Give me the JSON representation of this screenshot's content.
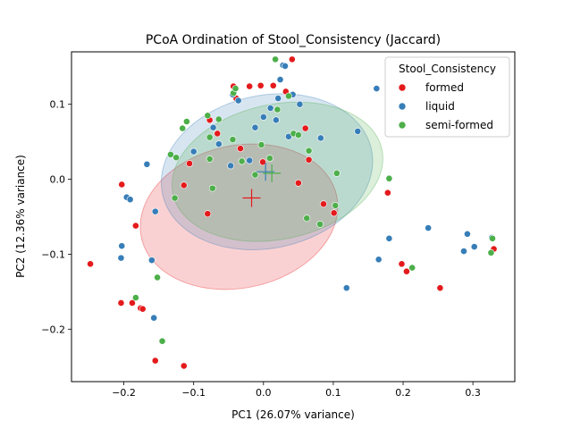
{
  "chart_data": {
    "type": "scatter",
    "title": "PCoA Ordination of Stool_Consistency (Jaccard)",
    "xlabel": "PC1 (26.07% variance)",
    "ylabel": "PC2 (12.36% variance)",
    "xlim": [
      -0.275,
      0.36
    ],
    "ylim": [
      -0.27,
      0.17
    ],
    "xticks": [
      -0.2,
      -0.1,
      0.0,
      0.1,
      0.2,
      0.3
    ],
    "xtick_labels": [
      "−0.2",
      "−0.1",
      "0.0",
      "0.1",
      "0.2",
      "0.3"
    ],
    "yticks": [
      -0.2,
      -0.1,
      0.0,
      0.1
    ],
    "ytick_labels": [
      "−0.2",
      "−0.1",
      "0.0",
      "0.1"
    ],
    "legend": {
      "title": "Stool_Consistency",
      "placement": "top-right"
    },
    "series": [
      {
        "name": "formed",
        "color": "#e41a1c",
        "centroid": [
          -0.017,
          -0.025
        ],
        "ellipse": {
          "center": [
            -0.035,
            -0.05
          ],
          "rx": 0.143,
          "ry": 0.095,
          "angle_deg": -12
        },
        "points": [
          [
            -0.248,
            -0.113
          ],
          [
            -0.203,
            -0.007
          ],
          [
            -0.204,
            -0.165
          ],
          [
            -0.188,
            -0.165
          ],
          [
            -0.183,
            -0.062
          ],
          [
            -0.176,
            -0.172
          ],
          [
            -0.173,
            -0.173
          ],
          [
            -0.155,
            -0.242
          ],
          [
            -0.114,
            -0.249
          ],
          [
            -0.106,
            0.021
          ],
          [
            -0.08,
            -0.046
          ],
          [
            -0.077,
            0.079
          ],
          [
            -0.066,
            0.061
          ],
          [
            -0.043,
            0.124
          ],
          [
            -0.039,
            0.108
          ],
          [
            -0.033,
            0.041
          ],
          [
            -0.02,
            0.124
          ],
          [
            -0.004,
            0.125
          ],
          [
            0.014,
            0.125
          ],
          [
            0.032,
            0.117
          ],
          [
            0.041,
            0.16
          ],
          [
            0.05,
            -0.005
          ],
          [
            0.06,
            0.068
          ],
          [
            0.065,
            0.026
          ],
          [
            0.086,
            -0.033
          ],
          [
            0.101,
            -0.045
          ],
          [
            0.178,
            -0.018
          ],
          [
            0.198,
            -0.113
          ],
          [
            0.205,
            -0.123
          ],
          [
            0.253,
            -0.145
          ],
          [
            0.33,
            -0.093
          ],
          [
            -0.155,
            -0.042
          ],
          [
            -0.114,
            -0.008
          ],
          [
            -0.001,
            0.023
          ]
        ]
      },
      {
        "name": "liquid",
        "color": "#377eb8",
        "centroid": [
          0.003,
          0.01
        ],
        "ellipse": {
          "center": [
            0.005,
            0.01
          ],
          "rx": 0.153,
          "ry": 0.102,
          "angle_deg": -12
        },
        "points": [
          [
            -0.203,
            -0.089
          ],
          [
            -0.204,
            -0.105
          ],
          [
            -0.196,
            -0.024
          ],
          [
            -0.191,
            -0.027
          ],
          [
            -0.167,
            0.02
          ],
          [
            -0.16,
            -0.108
          ],
          [
            -0.157,
            -0.185
          ],
          [
            -0.155,
            -0.043
          ],
          [
            -0.1,
            0.037
          ],
          [
            -0.072,
            0.069
          ],
          [
            -0.064,
            0.047
          ],
          [
            -0.047,
            0.018
          ],
          [
            -0.044,
            0.113
          ],
          [
            -0.036,
            0.105
          ],
          [
            -0.02,
            0.025
          ],
          [
            -0.012,
            0.069
          ],
          [
            0.0,
            0.083
          ],
          [
            0.01,
            0.095
          ],
          [
            0.018,
            0.079
          ],
          [
            0.024,
            0.133
          ],
          [
            0.028,
            0.152
          ],
          [
            0.031,
            0.151
          ],
          [
            0.036,
            0.057
          ],
          [
            0.042,
            0.113
          ],
          [
            0.052,
            0.1
          ],
          [
            0.082,
            0.055
          ],
          [
            0.119,
            -0.145
          ],
          [
            0.135,
            0.064
          ],
          [
            0.162,
            0.121
          ],
          [
            0.165,
            -0.107
          ],
          [
            0.18,
            -0.079
          ],
          [
            0.236,
            -0.065
          ],
          [
            0.287,
            -0.096
          ],
          [
            0.292,
            -0.073
          ],
          [
            0.302,
            -0.09
          ],
          [
            0.327,
            -0.078
          ],
          [
            0.021,
            0.108
          ]
        ]
      },
      {
        "name": "semi-formed",
        "color": "#4daf4a",
        "centroid": [
          0.012,
          0.008
        ],
        "ellipse": {
          "center": [
            0.02,
            0.01
          ],
          "rx": 0.153,
          "ry": 0.09,
          "angle_deg": -12
        },
        "points": [
          [
            -0.183,
            -0.158
          ],
          [
            -0.152,
            -0.131
          ],
          [
            -0.145,
            -0.216
          ],
          [
            -0.133,
            0.033
          ],
          [
            -0.125,
            0.029
          ],
          [
            -0.116,
            0.068
          ],
          [
            -0.11,
            0.077
          ],
          [
            -0.08,
            0.085
          ],
          [
            -0.077,
            0.056
          ],
          [
            -0.077,
            0.027
          ],
          [
            -0.044,
            0.053
          ],
          [
            -0.043,
            0.115
          ],
          [
            -0.04,
            0.121
          ],
          [
            -0.031,
            0.024
          ],
          [
            -0.012,
            0.006
          ],
          [
            -0.003,
            0.046
          ],
          [
            0.009,
            0.028
          ],
          [
            0.017,
            0.16
          ],
          [
            0.02,
            0.093
          ],
          [
            0.036,
            0.111
          ],
          [
            0.043,
            0.061
          ],
          [
            0.05,
            0.059
          ],
          [
            0.062,
            -0.052
          ],
          [
            0.065,
            0.038
          ],
          [
            0.081,
            -0.06
          ],
          [
            0.103,
            -0.035
          ],
          [
            0.105,
            0.008
          ],
          [
            0.18,
            0.001
          ],
          [
            0.213,
            -0.118
          ],
          [
            0.326,
            -0.098
          ],
          [
            0.328,
            -0.079
          ],
          [
            -0.073,
            -0.012
          ],
          [
            -0.127,
            -0.025
          ],
          [
            -0.064,
            0.08
          ]
        ]
      }
    ]
  }
}
